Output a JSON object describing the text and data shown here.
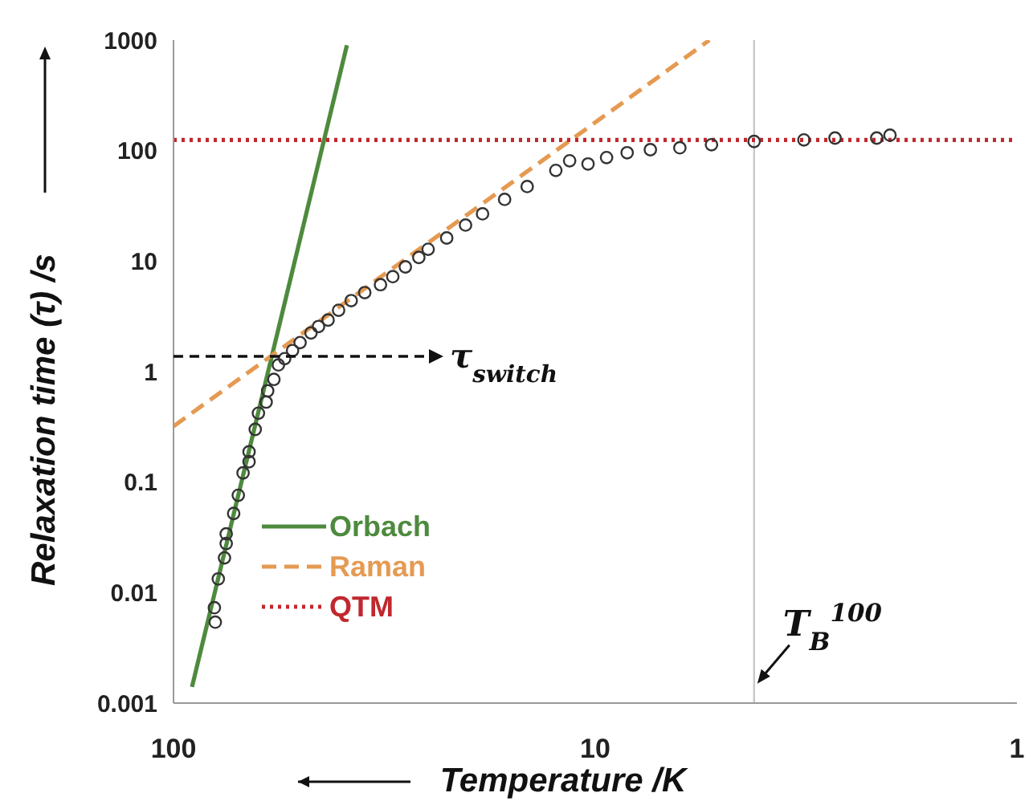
{
  "chart_data": {
    "type": "scatter",
    "xlabel": "Temperature /K",
    "ylabel": "Relaxation time (τ) /s",
    "log": "xy",
    "xlim": [
      100,
      1
    ],
    "xticks": [
      100,
      10,
      1
    ],
    "ylim": [
      0.001,
      1000
    ],
    "yticks": [
      0.001,
      0.01,
      0.1,
      1,
      10,
      100,
      1000
    ],
    "grid": false,
    "legend": "bottom left",
    "series": [
      {
        "color": "#333333",
        "marker": "circle",
        "x": [
          79.6,
          80,
          78.3,
          75.7,
          75,
          75,
          72,
          70.2,
          68.4,
          66.2,
          66.2,
          64,
          62.9,
          60.3,
          59.8,
          57.8,
          56.4,
          54.5,
          52.2,
          50.1,
          47.2,
          45.3,
          43,
          40.6,
          37.9,
          35.2,
          32.3,
          30.2,
          28.2,
          26.2,
          24.9,
          22.5,
          20.3,
          18.5,
          16.4,
          14.5,
          12.4,
          11.5,
          10.4,
          9.4,
          8.4,
          7.4,
          6.3,
          5.3,
          4.2,
          3.2,
          2.7,
          2.15,
          2
        ],
        "values": [
          0.0054,
          0.0073,
          0.0133,
          0.0206,
          0.0278,
          0.034,
          0.052,
          0.076,
          0.121,
          0.153,
          0.188,
          0.3,
          0.42,
          0.53,
          0.67,
          0.85,
          1.15,
          1.31,
          1.55,
          1.83,
          2.24,
          2.56,
          2.93,
          3.59,
          4.39,
          5.19,
          6.12,
          7.24,
          8.87,
          10.8,
          12.8,
          16.2,
          21.2,
          26.8,
          36.2,
          47.3,
          66.2,
          80.9,
          75.7,
          86.5,
          95.7,
          102,
          106,
          113,
          121,
          125,
          130,
          130,
          138
        ]
      },
      {
        "type": "line",
        "name": "Orbach",
        "color": "#4e8a3e",
        "line_style": "solid",
        "marker": "none",
        "x": [
          90.4,
          38.8
        ],
        "values": [
          0.0014,
          900
        ]
      },
      {
        "type": "line",
        "name": "Raman",
        "color": "#e59a52",
        "line_style": "dashed",
        "marker": "none",
        "x": [
          100,
          5.36
        ],
        "values": [
          0.32,
          1000
        ]
      },
      {
        "type": "line",
        "name": "QTM",
        "color": "#c0282d",
        "line_style": "dotted",
        "marker": "none",
        "x": [
          100,
          1
        ],
        "values": [
          125,
          125
        ]
      }
    ],
    "ref_lines": [
      {
        "axis": "x",
        "value": 4.2,
        "color": "#c8c8c8"
      }
    ],
    "annotations": [
      "τ$_{switch}$",
      {
        "text": "T$_{B}$$^{100}$",
        "x": 4.2,
        "y": 0.0015
      }
    ]
  }
}
